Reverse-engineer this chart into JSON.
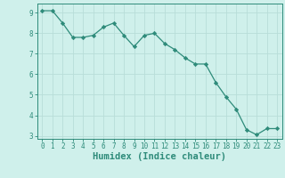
{
  "x": [
    0,
    1,
    2,
    3,
    4,
    5,
    6,
    7,
    8,
    9,
    10,
    11,
    12,
    13,
    14,
    15,
    16,
    17,
    18,
    19,
    20,
    21,
    22,
    23
  ],
  "y": [
    9.1,
    9.1,
    8.5,
    7.8,
    7.8,
    7.9,
    8.3,
    8.5,
    7.9,
    7.35,
    7.9,
    8.0,
    7.5,
    7.2,
    6.8,
    6.5,
    6.5,
    5.6,
    4.9,
    4.3,
    3.3,
    3.05,
    3.35,
    3.35
  ],
  "line_color": "#2e8b7a",
  "marker": "D",
  "marker_size": 2.2,
  "bg_color": "#cff0eb",
  "grid_color": "#b8ddd8",
  "xlabel": "Humidex (Indice chaleur)",
  "xlim_lo": -0.5,
  "xlim_hi": 23.5,
  "ylim_lo": 2.85,
  "ylim_hi": 9.45,
  "yticks": [
    3,
    4,
    5,
    6,
    7,
    8,
    9
  ],
  "xticks": [
    0,
    1,
    2,
    3,
    4,
    5,
    6,
    7,
    8,
    9,
    10,
    11,
    12,
    13,
    14,
    15,
    16,
    17,
    18,
    19,
    20,
    21,
    22,
    23
  ],
  "tick_fontsize": 5.5,
  "xlabel_fontsize": 7.5,
  "linewidth": 0.9
}
